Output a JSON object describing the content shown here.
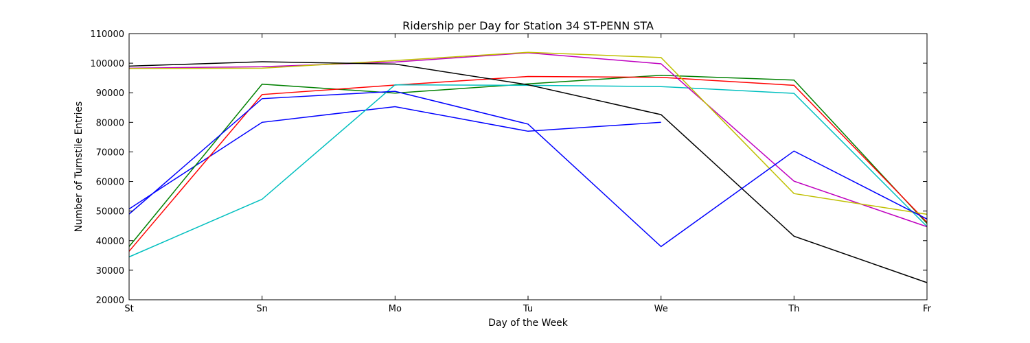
{
  "chart_data": {
    "type": "line",
    "title": "Ridership per Day for Station 34 ST-PENN STA",
    "xlabel": "Day of the Week",
    "ylabel": "Number of Turnstile Entries",
    "categories": [
      "St",
      "Sn",
      "Mo",
      "Tu",
      "We",
      "Th",
      "Fr"
    ],
    "ylim": [
      20000,
      110000
    ],
    "yticks": [
      20000,
      30000,
      40000,
      50000,
      60000,
      70000,
      80000,
      90000,
      100000,
      110000
    ],
    "ytick_labels": [
      "20000",
      "30000",
      "40000",
      "50000",
      "60000",
      "70000",
      "80000",
      "90000",
      "100000",
      "110000"
    ],
    "grid": false,
    "legend": "none",
    "series": [
      {
        "color": "#0000ff",
        "values": [
          50700,
          80000,
          85300,
          77000,
          80000,
          null,
          null
        ]
      },
      {
        "color": "#008000",
        "values": [
          38000,
          92900,
          89900,
          93000,
          95900,
          94300,
          45800
        ]
      },
      {
        "color": "#ff0000",
        "values": [
          36400,
          89400,
          92600,
          95500,
          95200,
          92500,
          46200
        ]
      },
      {
        "color": "#00bfbf",
        "values": [
          34500,
          54000,
          92700,
          92500,
          92100,
          89800,
          44800
        ]
      },
      {
        "color": "#bf00bf",
        "values": [
          98300,
          98800,
          100400,
          103500,
          99800,
          60100,
          44700
        ]
      },
      {
        "color": "#bfbf00",
        "values": [
          98200,
          98300,
          100900,
          103700,
          101900,
          55900,
          48900
        ]
      },
      {
        "color": "#000000",
        "values": [
          99000,
          100500,
          99700,
          92700,
          82600,
          41500,
          25800
        ]
      },
      {
        "color": "#0000ff",
        "values": [
          49000,
          88000,
          90500,
          79400,
          38000,
          70300,
          47300
        ]
      }
    ]
  }
}
